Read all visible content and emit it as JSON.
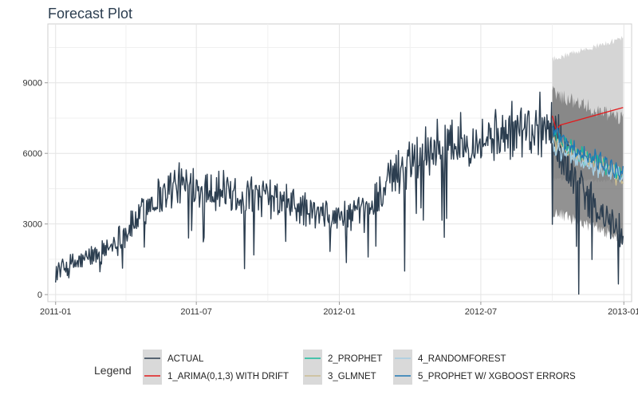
{
  "chart_data": {
    "type": "line",
    "title": "Forecast Plot",
    "xlabel": "",
    "ylabel": "",
    "x_ticks": [
      "2011-01",
      "2011-07",
      "2012-01",
      "2012-07",
      "2013-01"
    ],
    "y_ticks": [
      "0",
      "3000",
      "6000",
      "9000"
    ],
    "ylim": [
      -300,
      11500
    ],
    "xlim": [
      "2010-12-22",
      "2013-01-11"
    ],
    "grid": true,
    "legend_placement": "bottom",
    "legend_title": "Legend",
    "actual_range": [
      "2011-01-01",
      "2012-12-31"
    ],
    "forecast_range": [
      "2012-10-01",
      "2012-12-31"
    ],
    "series": [
      {
        "name": "ACTUAL",
        "color": "#2c3e50",
        "trend": [
          [
            "2011-01-01",
            1000
          ],
          [
            "2011-02-01",
            1400
          ],
          [
            "2011-03-01",
            1800
          ],
          [
            "2011-04-01",
            2600
          ],
          [
            "2011-05-01",
            3900
          ],
          [
            "2011-06-01",
            4600
          ],
          [
            "2011-07-01",
            4700
          ],
          [
            "2011-08-01",
            4400
          ],
          [
            "2011-09-01",
            4200
          ],
          [
            "2011-10-01",
            4100
          ],
          [
            "2011-11-01",
            3800
          ],
          [
            "2011-12-01",
            3400
          ],
          [
            "2012-01-01",
            3300
          ],
          [
            "2012-02-01",
            3400
          ],
          [
            "2012-03-01",
            4600
          ],
          [
            "2012-04-01",
            5800
          ],
          [
            "2012-05-01",
            6300
          ],
          [
            "2012-06-01",
            6500
          ],
          [
            "2012-07-01",
            6600
          ],
          [
            "2012-08-01",
            6800
          ],
          [
            "2012-09-01",
            7100
          ],
          [
            "2012-10-01",
            7000
          ],
          [
            "2012-11-01",
            4800
          ],
          [
            "2012-12-01",
            3400
          ],
          [
            "2012-12-31",
            2600
          ]
        ],
        "noise_amplitude": 800,
        "notable_points": [
          [
            "2012-11-04",
            20
          ],
          [
            "2012-12-25",
            450
          ],
          [
            "2012-03-25",
            1000
          ],
          [
            "2011-09-01",
            1100
          ],
          [
            "2012-09-15",
            8600
          ]
        ]
      },
      {
        "name": "1_ARIMA(0,1,3) WITH DRIFT",
        "color": "#e31a1c",
        "values": [
          [
            "2012-10-01",
            7600
          ],
          [
            "2012-10-06",
            7000
          ],
          [
            "2012-10-11",
            7200
          ],
          [
            "2012-12-31",
            7950
          ]
        ]
      },
      {
        "name": "2_PROPHET",
        "color": "#18bc9c",
        "trend": [
          [
            "2012-10-01",
            6700
          ],
          [
            "2012-11-01",
            6000
          ],
          [
            "2012-12-01",
            5600
          ],
          [
            "2012-12-31",
            5100
          ]
        ]
      },
      {
        "name": "3_GLMNET",
        "color": "#ccbe93",
        "trend": [
          [
            "2012-10-01",
            6500
          ],
          [
            "2012-11-01",
            5900
          ],
          [
            "2012-12-01",
            5500
          ],
          [
            "2012-12-31",
            4900
          ]
        ]
      },
      {
        "name": "4_RANDOMFOREST",
        "color": "#a6cee3",
        "trend": [
          [
            "2012-10-01",
            6300
          ],
          [
            "2012-11-01",
            5700
          ],
          [
            "2012-12-01",
            5300
          ],
          [
            "2012-12-31",
            5000
          ]
        ]
      },
      {
        "name": "5_PROPHET W/ XGBOOST ERRORS",
        "color": "#1f78b4",
        "trend": [
          [
            "2012-10-01",
            7000
          ],
          [
            "2012-11-01",
            6100
          ],
          [
            "2012-12-01",
            5700
          ],
          [
            "2012-12-31",
            5200
          ]
        ]
      }
    ],
    "prediction_interval": [
      {
        "series": "1_ARIMA(0,1,3) WITH DRIFT",
        "upper_start": 10000,
        "upper_end": 10900,
        "lower_start": 4900,
        "lower_end": 4800
      },
      {
        "series": "models",
        "upper_start": 8600,
        "upper_end": 7400,
        "lower_start": 3500,
        "lower_end": 2400
      }
    ]
  }
}
